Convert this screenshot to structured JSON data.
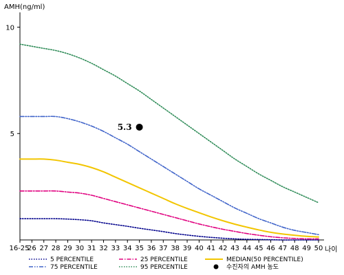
{
  "chart_data": {
    "type": "line",
    "ylabel": "AMH(ng/ml)",
    "xlabel": "나이",
    "categories": [
      "16-25",
      "26",
      "27",
      "28",
      "29",
      "30",
      "31",
      "32",
      "33",
      "34",
      "35",
      "36",
      "37",
      "38",
      "39",
      "40",
      "41",
      "42",
      "43",
      "44",
      "45",
      "46",
      "47",
      "48",
      "49",
      "50"
    ],
    "yticks": [
      5,
      10
    ],
    "ylim": [
      0,
      10.5
    ],
    "grid": false,
    "legend_position": "bottom",
    "series": [
      {
        "name": "5 PERCENTILE",
        "key": "p5",
        "color": "#00008b",
        "dash": "dotted",
        "values": [
          1.0,
          1.0,
          1.0,
          1.0,
          0.98,
          0.95,
          0.9,
          0.8,
          0.72,
          0.64,
          0.55,
          0.47,
          0.39,
          0.3,
          0.23,
          0.17,
          0.12,
          0.08,
          0.05,
          0.03,
          0.02,
          0.01,
          0.0,
          0.0,
          0.0,
          0.0
        ]
      },
      {
        "name": "25 PERCENTILE",
        "key": "p25",
        "color": "#e0007f",
        "dash": "dashdot",
        "values": [
          2.3,
          2.3,
          2.3,
          2.3,
          2.25,
          2.2,
          2.1,
          1.95,
          1.8,
          1.65,
          1.5,
          1.35,
          1.2,
          1.05,
          0.9,
          0.75,
          0.62,
          0.5,
          0.4,
          0.3,
          0.22,
          0.15,
          0.1,
          0.07,
          0.05,
          0.05
        ]
      },
      {
        "name": "MEDIAN(50 PERCENTILE)",
        "key": "p50",
        "color": "#f2c500",
        "dash": "solid",
        "values": [
          3.8,
          3.8,
          3.8,
          3.75,
          3.65,
          3.55,
          3.4,
          3.2,
          2.95,
          2.7,
          2.45,
          2.2,
          1.95,
          1.7,
          1.48,
          1.28,
          1.08,
          0.9,
          0.74,
          0.6,
          0.47,
          0.36,
          0.28,
          0.22,
          0.17,
          0.14
        ]
      },
      {
        "name": "75 PERCENTILE",
        "key": "p75",
        "color": "#3f63c9",
        "dash": "dashdotdot",
        "values": [
          5.8,
          5.8,
          5.8,
          5.8,
          5.7,
          5.55,
          5.35,
          5.1,
          4.8,
          4.5,
          4.15,
          3.8,
          3.45,
          3.1,
          2.75,
          2.4,
          2.1,
          1.8,
          1.5,
          1.25,
          1.0,
          0.8,
          0.6,
          0.45,
          0.35,
          0.25
        ]
      },
      {
        "name": "95 PERCENTILE",
        "key": "p95",
        "color": "#2e8b57",
        "dash": "dotted",
        "values": [
          9.2,
          9.1,
          9.0,
          8.9,
          8.75,
          8.55,
          8.3,
          8.0,
          7.7,
          7.35,
          7.0,
          6.6,
          6.2,
          5.8,
          5.4,
          5.0,
          4.6,
          4.2,
          3.8,
          3.45,
          3.1,
          2.8,
          2.5,
          2.25,
          2.0,
          1.75
        ]
      }
    ],
    "points": [
      {
        "name": "수진자의 AMH 농도",
        "x": "35",
        "y": 5.3,
        "label": "5.3",
        "color": "#000000"
      }
    ]
  }
}
